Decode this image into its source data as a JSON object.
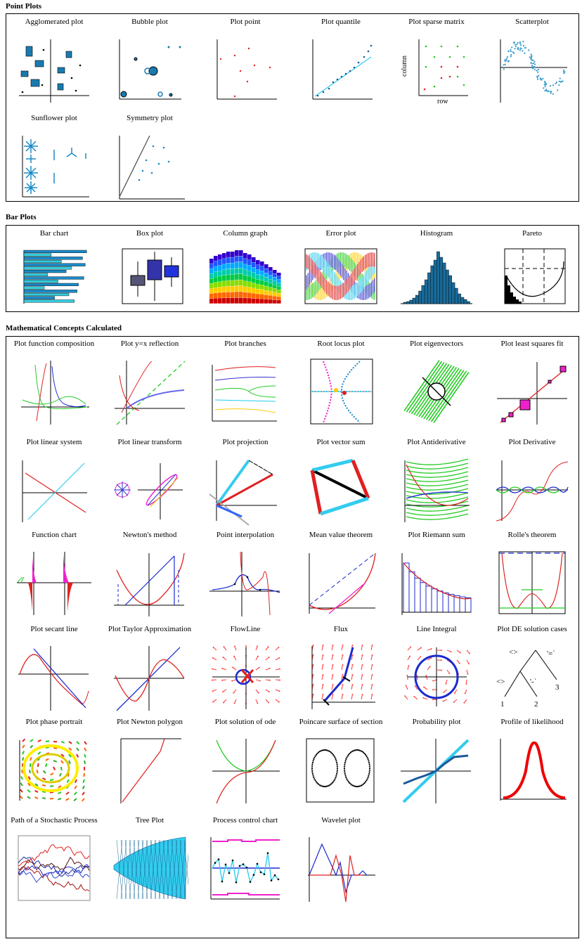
{
  "sections": [
    {
      "title": "Point Plots",
      "items": [
        {
          "label": "Agglomerated plot",
          "icon": "agglomerated-plot-thumbnail"
        },
        {
          "label": "Bubble plot",
          "icon": "bubble-plot-thumbnail"
        },
        {
          "label": "Plot point",
          "icon": "plot-point-thumbnail"
        },
        {
          "label": "Plot quantile",
          "icon": "plot-quantile-thumbnail"
        },
        {
          "label": "Plot sparse matrix",
          "icon": "plot-sparse-matrix-thumbnail",
          "axis_x": "row",
          "axis_y": "column"
        },
        {
          "label": "Scatterplot",
          "icon": "scatterplot-thumbnail"
        },
        {
          "label": "Sunflower plot",
          "icon": "sunflower-plot-thumbnail"
        },
        {
          "label": "Symmetry plot",
          "icon": "symmetry-plot-thumbnail"
        }
      ]
    },
    {
      "title": "Bar Plots",
      "items": [
        {
          "label": "Bar chart",
          "icon": "bar-chart-thumbnail"
        },
        {
          "label": "Box plot",
          "icon": "box-plot-thumbnail"
        },
        {
          "label": "Column graph",
          "icon": "column-graph-thumbnail"
        },
        {
          "label": "Error plot",
          "icon": "error-plot-thumbnail"
        },
        {
          "label": "Histogram",
          "icon": "histogram-thumbnail"
        },
        {
          "label": "Pareto",
          "icon": "pareto-thumbnail"
        }
      ]
    },
    {
      "title": "Mathematical Concepts Calculated",
      "items": [
        {
          "label": "Plot function composition",
          "icon": "function-composition-thumbnail"
        },
        {
          "label": "Plot y=x reflection",
          "icon": "reflection-thumbnail"
        },
        {
          "label": "Plot branches",
          "icon": "branches-thumbnail"
        },
        {
          "label": "Root locus plot",
          "icon": "root-locus-thumbnail"
        },
        {
          "label": "Plot eigenvectors",
          "icon": "eigenvectors-thumbnail"
        },
        {
          "label": "Plot least squares fit",
          "icon": "least-squares-thumbnail"
        },
        {
          "label": "Plot linear system",
          "icon": "linear-system-thumbnail"
        },
        {
          "label": "Plot linear transform",
          "icon": "linear-transform-thumbnail"
        },
        {
          "label": "Plot projection",
          "icon": "projection-thumbnail"
        },
        {
          "label": "Plot vector sum",
          "icon": "vector-sum-thumbnail"
        },
        {
          "label": "Plot Antiderivative",
          "icon": "antiderivative-thumbnail"
        },
        {
          "label": "Plot Derivative",
          "icon": "derivative-thumbnail"
        },
        {
          "label": "Function chart",
          "icon": "function-chart-thumbnail"
        },
        {
          "label": "Newton's method",
          "icon": "newtons-method-thumbnail"
        },
        {
          "label": "Point interpolation",
          "icon": "point-interpolation-thumbnail"
        },
        {
          "label": "Mean value theorem",
          "icon": "mean-value-theorem-thumbnail"
        },
        {
          "label": "Plot Riemann sum",
          "icon": "riemann-sum-thumbnail"
        },
        {
          "label": "Rolle's theorem",
          "icon": "rolles-theorem-thumbnail"
        },
        {
          "label": "Plot secant line",
          "icon": "secant-line-thumbnail"
        },
        {
          "label": "Plot Taylor Approximation",
          "icon": "taylor-approximation-thumbnail"
        },
        {
          "label": "FlowLine",
          "icon": "flowline-thumbnail"
        },
        {
          "label": "Flux",
          "icon": "flux-thumbnail"
        },
        {
          "label": "Line Integral",
          "icon": "line-integral-thumbnail"
        },
        {
          "label": "Plot DE solution cases",
          "icon": "de-solution-cases-thumbnail",
          "tree_labels": [
            "<>",
            "'=`",
            "<>",
            "'-`",
            "1",
            "2",
            "3"
          ]
        },
        {
          "label": "Plot phase portrait",
          "icon": "phase-portrait-thumbnail"
        },
        {
          "label": "Plot Newton polygon",
          "icon": "newton-polygon-thumbnail"
        },
        {
          "label": "Plot solution of ode",
          "icon": "ode-solution-thumbnail"
        },
        {
          "label": "Poincare surface of section",
          "icon": "poincare-section-thumbnail"
        },
        {
          "label": "Probability plot",
          "icon": "probability-plot-thumbnail"
        },
        {
          "label": "Profile of likelihood",
          "icon": "likelihood-profile-thumbnail"
        },
        {
          "label": "Path of a Stochastic Process",
          "icon": "stochastic-process-thumbnail"
        },
        {
          "label": "Tree Plot",
          "icon": "tree-plot-thumbnail"
        },
        {
          "label": "Process control chart",
          "icon": "process-control-chart-thumbnail"
        },
        {
          "label": "Wavelet plot",
          "icon": "wavelet-plot-thumbnail"
        }
      ]
    }
  ],
  "colors": {
    "blue": "#1a8ac8",
    "red": "#e02020",
    "green": "#22cc22",
    "cyan": "#33ccee",
    "magenta": "#ee22cc",
    "navy": "#1a2a99"
  }
}
